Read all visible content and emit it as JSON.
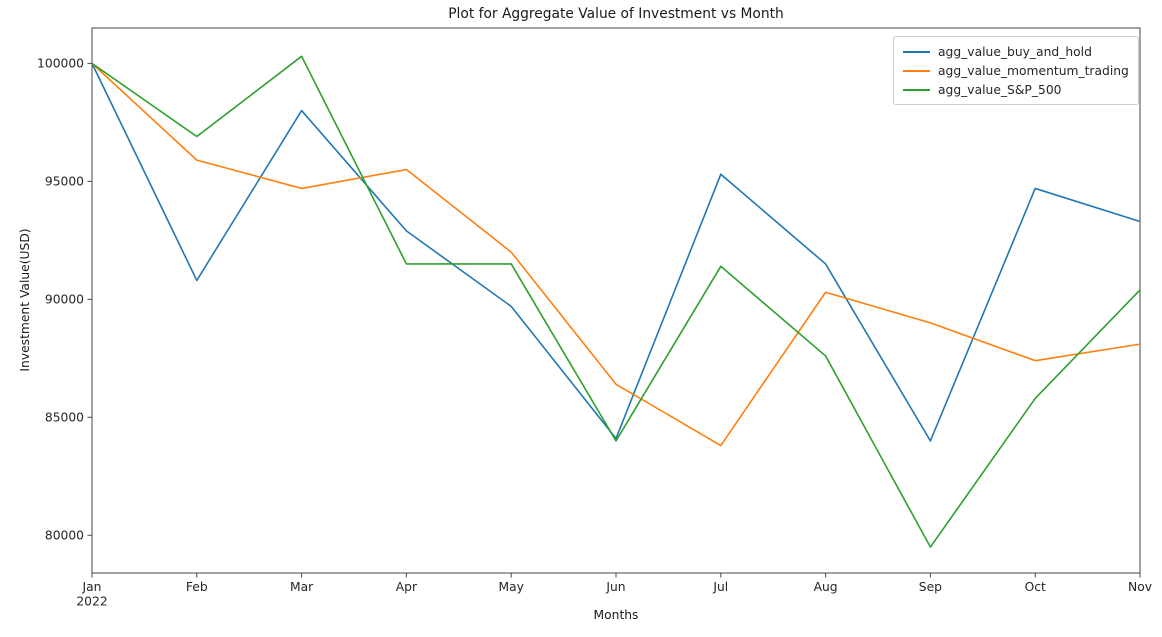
{
  "figure": {
    "title": "Plot for Aggregate Value of Investment vs Month",
    "xlabel": "Months",
    "ylabel": "Investment Value(USD)"
  },
  "chart_data": {
    "type": "line",
    "title": "Plot for Aggregate Value of Investment vs Month",
    "xlabel": "Months",
    "ylabel": "Investment Value(USD)",
    "categories": [
      "Jan",
      "Feb",
      "Mar",
      "Apr",
      "May",
      "Jun",
      "Jul",
      "Aug",
      "Sep",
      "Oct",
      "Nov"
    ],
    "x_first_tick_sublabel": "2022",
    "yticks": [
      80000,
      85000,
      90000,
      95000,
      100000
    ],
    "ytick_labels": [
      "80000",
      "85000",
      "90000",
      "95000",
      "100000"
    ],
    "ylim": [
      78400,
      101500
    ],
    "grid": false,
    "legend_position": "upper-right",
    "series": [
      {
        "name": "agg_value_buy_and_hold",
        "color": "#1f77b4",
        "values": [
          100000,
          90800,
          98000,
          92900,
          89700,
          84100,
          95300,
          91500,
          84000,
          94700,
          93300
        ]
      },
      {
        "name": "agg_value_momentum_trading",
        "color": "#ff7f0e",
        "values": [
          100000,
          95900,
          94700,
          95500,
          92000,
          86400,
          83800,
          90300,
          89000,
          87400,
          88100
        ]
      },
      {
        "name": "agg_value_S&P_500",
        "color": "#2ca02c",
        "values": [
          100000,
          96900,
          100300,
          91500,
          91500,
          84000,
          91400,
          87600,
          79500,
          85800,
          90400
        ]
      }
    ]
  }
}
